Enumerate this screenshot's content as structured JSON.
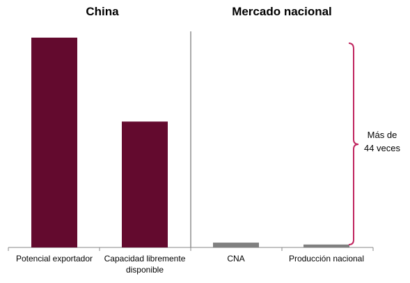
{
  "chart_data": {
    "type": "bar",
    "panels": [
      {
        "title": "China",
        "categories": [
          "Potencial exportador",
          "Capacidad librementedisponible"
        ]
      },
      {
        "title": "Mercado nacional",
        "categories": [
          "CNA",
          "Producción nacional"
        ]
      }
    ],
    "categories": [
      {
        "line1": "Potencial exportador",
        "line2": ""
      },
      {
        "line1": "Capacidad libremente",
        "line2": "disponible"
      },
      {
        "line1": "CNA",
        "line2": ""
      },
      {
        "line1": "Producción nacional",
        "line2": ""
      }
    ],
    "values": [
      100,
      60,
      2.3,
      1.4
    ],
    "colors": [
      "#630a2e",
      "#630a2e",
      "#808080",
      "#808080"
    ],
    "ylim": [
      0,
      100
    ],
    "annotation": {
      "lines": [
        "Más de",
        "44 veces"
      ],
      "color": "#c0245e"
    },
    "title": "",
    "xlabel": "",
    "ylabel": ""
  }
}
